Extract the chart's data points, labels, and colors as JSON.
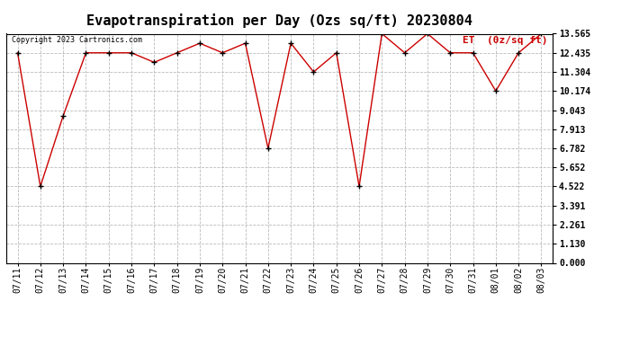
{
  "title": "Evapotranspiration per Day (Ozs sq/ft) 20230804",
  "legend_label": "ET  (0z/sq ft)",
  "copyright": "Copyright 2023 Cartronics.com",
  "dates": [
    "07/11",
    "07/12",
    "07/13",
    "07/14",
    "07/15",
    "07/16",
    "07/17",
    "07/18",
    "07/19",
    "07/20",
    "07/21",
    "07/22",
    "07/23",
    "07/24",
    "07/25",
    "07/26",
    "07/27",
    "07/28",
    "07/29",
    "07/30",
    "07/31",
    "08/01",
    "08/02",
    "08/03"
  ],
  "values": [
    12.435,
    4.522,
    8.695,
    12.435,
    12.435,
    12.435,
    11.87,
    12.435,
    13.0,
    12.435,
    13.0,
    6.782,
    13.0,
    11.304,
    12.435,
    4.522,
    13.565,
    12.435,
    13.565,
    12.435,
    12.435,
    10.174,
    12.435,
    13.565
  ],
  "yticks": [
    0.0,
    1.13,
    2.261,
    3.391,
    4.522,
    5.652,
    6.782,
    7.913,
    9.043,
    10.174,
    11.304,
    12.435,
    13.565
  ],
  "ylim": [
    0.0,
    13.565
  ],
  "line_color": "#cc0000",
  "marker_color": "#000000",
  "bg_color": "#ffffff",
  "grid_color": "#bbbbbb",
  "legend_color": "#cc0000",
  "title_fontsize": 11,
  "tick_fontsize": 7,
  "legend_fontsize": 8,
  "copyright_fontsize": 6
}
